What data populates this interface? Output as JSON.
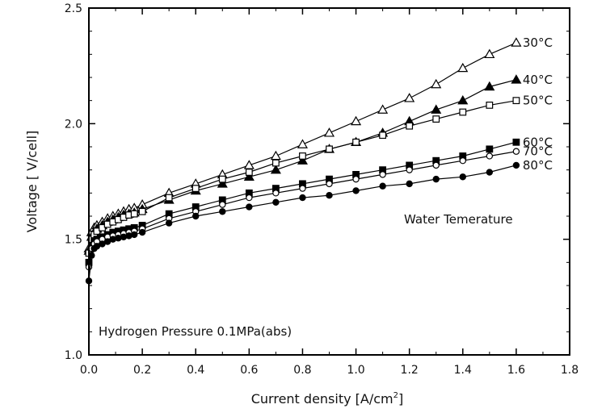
{
  "chart_data": {
    "type": "line",
    "xlabel": "Current density [A/cm",
    "xlabel_sup": "2",
    "xlabel_end": "]",
    "ylabel": "Voltage [ V/cell]",
    "xlim": [
      0.0,
      1.8
    ],
    "ylim": [
      1.0,
      2.5
    ],
    "xticks": [
      0.0,
      0.2,
      0.4,
      0.6,
      0.8,
      1.0,
      1.2,
      1.4,
      1.6,
      1.8
    ],
    "xtick_labels": [
      "0.0",
      "0.2",
      "0.4",
      "0.6",
      "0.8",
      "1.0",
      "1.2",
      "1.4",
      "1.6",
      "1.8"
    ],
    "yticks": [
      1.0,
      1.5,
      2.0,
      2.5
    ],
    "ytick_labels": [
      "1.0",
      "1.5",
      "2.0",
      "2.5"
    ],
    "grid": false,
    "legend": "inline labels at series ends",
    "annotations": {
      "water_temperature": "Water Temerature",
      "hydrogen_pressure": "Hydrogen Pressure 0.1MPa(abs)"
    },
    "series": [
      {
        "name": "30°C",
        "marker": "triangle-open",
        "x": [
          0.0,
          0.01,
          0.02,
          0.03,
          0.05,
          0.07,
          0.09,
          0.11,
          0.13,
          0.15,
          0.17,
          0.2,
          0.3,
          0.4,
          0.5,
          0.6,
          0.7,
          0.8,
          0.9,
          1.0,
          1.1,
          1.2,
          1.3,
          1.4,
          1.5,
          1.6
        ],
        "y": [
          1.46,
          1.53,
          1.55,
          1.56,
          1.575,
          1.59,
          1.6,
          1.61,
          1.62,
          1.63,
          1.635,
          1.65,
          1.7,
          1.74,
          1.78,
          1.82,
          1.86,
          1.91,
          1.96,
          2.01,
          2.06,
          2.11,
          2.17,
          2.24,
          2.3,
          2.35
        ]
      },
      {
        "name": "40°C",
        "marker": "triangle-filled",
        "x": [
          0.0,
          0.01,
          0.02,
          0.03,
          0.05,
          0.07,
          0.09,
          0.11,
          0.13,
          0.15,
          0.17,
          0.2,
          0.3,
          0.4,
          0.5,
          0.6,
          0.7,
          0.8,
          0.9,
          1.0,
          1.1,
          1.2,
          1.3,
          1.4,
          1.5,
          1.6
        ],
        "y": [
          1.45,
          1.51,
          1.53,
          1.545,
          1.56,
          1.575,
          1.585,
          1.595,
          1.605,
          1.61,
          1.615,
          1.63,
          1.67,
          1.71,
          1.74,
          1.77,
          1.8,
          1.84,
          1.89,
          1.92,
          1.96,
          2.01,
          2.06,
          2.1,
          2.16,
          2.19
        ]
      },
      {
        "name": "50°C",
        "marker": "square-open",
        "x": [
          0.0,
          0.01,
          0.02,
          0.03,
          0.05,
          0.07,
          0.09,
          0.11,
          0.13,
          0.15,
          0.17,
          0.2,
          0.3,
          0.4,
          0.5,
          0.6,
          0.7,
          0.8,
          0.9,
          1.0,
          1.1,
          1.2,
          1.3,
          1.4,
          1.5,
          1.6
        ],
        "y": [
          1.44,
          1.5,
          1.52,
          1.535,
          1.55,
          1.565,
          1.575,
          1.585,
          1.595,
          1.605,
          1.61,
          1.62,
          1.68,
          1.72,
          1.76,
          1.79,
          1.83,
          1.86,
          1.89,
          1.92,
          1.95,
          1.99,
          2.02,
          2.05,
          2.08,
          2.1
        ]
      },
      {
        "name": "60°C",
        "marker": "square-filled",
        "x": [
          0.0,
          0.01,
          0.02,
          0.03,
          0.05,
          0.07,
          0.09,
          0.11,
          0.13,
          0.15,
          0.17,
          0.2,
          0.3,
          0.4,
          0.5,
          0.6,
          0.7,
          0.8,
          0.9,
          1.0,
          1.1,
          1.2,
          1.3,
          1.4,
          1.5,
          1.6
        ],
        "y": [
          1.4,
          1.47,
          1.49,
          1.5,
          1.51,
          1.52,
          1.53,
          1.535,
          1.54,
          1.545,
          1.55,
          1.56,
          1.61,
          1.64,
          1.67,
          1.7,
          1.72,
          1.74,
          1.76,
          1.78,
          1.8,
          1.82,
          1.84,
          1.86,
          1.89,
          1.92
        ]
      },
      {
        "name": "70°C",
        "marker": "circle-open",
        "x": [
          0.0,
          0.01,
          0.02,
          0.03,
          0.05,
          0.07,
          0.09,
          0.11,
          0.13,
          0.15,
          0.17,
          0.2,
          0.3,
          0.4,
          0.5,
          0.6,
          0.7,
          0.8,
          0.9,
          1.0,
          1.1,
          1.2,
          1.3,
          1.4,
          1.5,
          1.6
        ],
        "y": [
          1.38,
          1.46,
          1.48,
          1.49,
          1.5,
          1.51,
          1.515,
          1.52,
          1.525,
          1.53,
          1.535,
          1.545,
          1.59,
          1.62,
          1.65,
          1.68,
          1.7,
          1.72,
          1.74,
          1.76,
          1.78,
          1.8,
          1.82,
          1.84,
          1.86,
          1.88
        ]
      },
      {
        "name": "80°C",
        "marker": "circle-filled",
        "x": [
          0.0,
          0.01,
          0.02,
          0.03,
          0.05,
          0.07,
          0.09,
          0.11,
          0.13,
          0.15,
          0.17,
          0.2,
          0.3,
          0.4,
          0.5,
          0.6,
          0.7,
          0.8,
          0.9,
          1.0,
          1.1,
          1.2,
          1.3,
          1.4,
          1.5,
          1.6
        ],
        "y": [
          1.32,
          1.43,
          1.46,
          1.47,
          1.48,
          1.49,
          1.5,
          1.505,
          1.51,
          1.515,
          1.52,
          1.53,
          1.57,
          1.6,
          1.62,
          1.64,
          1.66,
          1.68,
          1.69,
          1.71,
          1.73,
          1.74,
          1.76,
          1.77,
          1.79,
          1.82
        ]
      }
    ]
  }
}
